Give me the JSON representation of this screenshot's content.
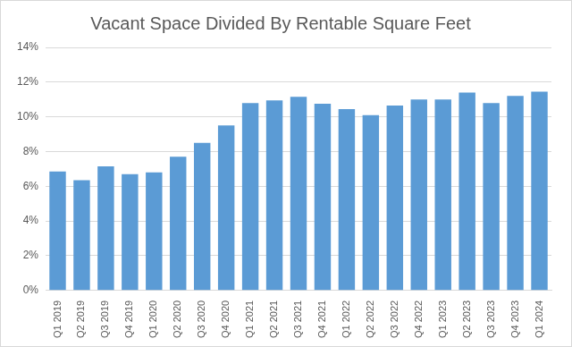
{
  "chart_data": {
    "type": "bar",
    "title": "Vacant Space Divided By Rentable Square Feet",
    "categories": [
      "Q1 2019",
      "Q2 2019",
      "Q3 2019",
      "Q4 2019",
      "Q1 2020",
      "Q2 2020",
      "Q3 2020",
      "Q4 2020",
      "Q1 2021",
      "Q2 2021",
      "Q3 2021",
      "Q4 2021",
      "Q1 2022",
      "Q2 2022",
      "Q3 2022",
      "Q4 2022",
      "Q1 2023",
      "Q2 2023",
      "Q3 2023",
      "Q4 2023",
      "Q1 2024"
    ],
    "values": [
      6.85,
      6.35,
      7.15,
      6.7,
      6.8,
      7.7,
      8.5,
      9.5,
      10.8,
      10.95,
      11.15,
      10.75,
      10.45,
      10.1,
      10.65,
      11.0,
      11.0,
      11.4,
      10.8,
      11.2,
      11.45
    ],
    "color": "#5b9bd5",
    "ylim": [
      0,
      14
    ],
    "yticks": [
      {
        "value": 0,
        "label": "0%"
      },
      {
        "value": 2,
        "label": "2%"
      },
      {
        "value": 4,
        "label": "4%"
      },
      {
        "value": 6,
        "label": "6%"
      },
      {
        "value": 8,
        "label": "8%"
      },
      {
        "value": 10,
        "label": "10%"
      },
      {
        "value": 12,
        "label": "12%"
      },
      {
        "value": 14,
        "label": "14%"
      }
    ],
    "grid": true
  }
}
